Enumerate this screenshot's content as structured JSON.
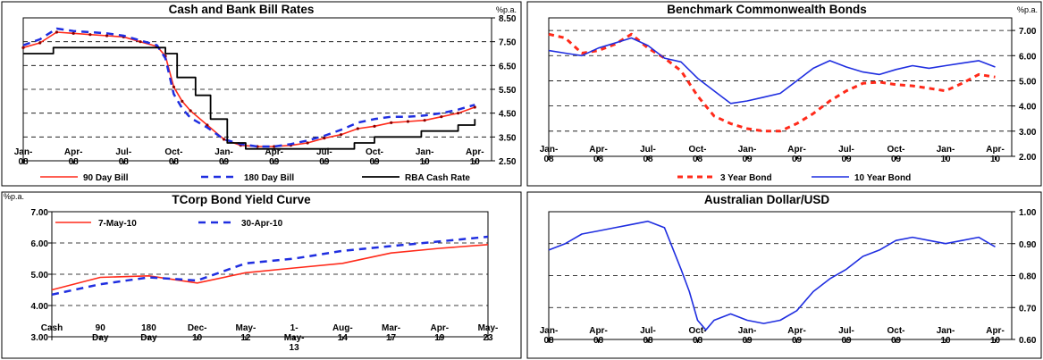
{
  "colors": {
    "red": "#ff2a1a",
    "blue": "#1f2ee0",
    "black": "#000000",
    "darkred": "#8b0000"
  },
  "chart_data": [
    {
      "id": "cash-bank",
      "type": "line",
      "title": "Cash and Bank Bill Rates",
      "unit": "%p.a.",
      "y_axis_side": "right",
      "ylim": [
        2.5,
        8.5
      ],
      "yticks": [
        "8.50",
        "7.50",
        "6.50",
        "5.50",
        "4.50",
        "3.50",
        "2.50"
      ],
      "xlim": [
        0,
        28
      ],
      "xtick_labels": [
        "Jan-\n08",
        "Apr-\n08",
        "Jul-\n08",
        "Oct-\n08",
        "Jan-\n09",
        "Apr-\n09",
        "Jul-\n09",
        "Oct-\n09",
        "Jan-\n10",
        "Apr-\n10"
      ],
      "grid": "horizontal dashed",
      "legend": "bottom",
      "series": [
        {
          "name": "90 Day Bill",
          "color": "red",
          "style": "solid-marker",
          "x": [
            0,
            1,
            2,
            3,
            4,
            5,
            6,
            7,
            8,
            8.5,
            9,
            9.5,
            10,
            11,
            12,
            13,
            14,
            15,
            16,
            17,
            18,
            19,
            20,
            21,
            22,
            23,
            24,
            25,
            26,
            27
          ],
          "y": [
            7.25,
            7.45,
            7.9,
            7.85,
            7.8,
            7.75,
            7.7,
            7.5,
            7.3,
            6.9,
            5.6,
            5.0,
            4.6,
            4.0,
            3.4,
            3.15,
            3.1,
            3.1,
            3.15,
            3.25,
            3.45,
            3.6,
            3.85,
            3.95,
            4.1,
            4.15,
            4.2,
            4.35,
            4.5,
            4.75
          ]
        },
        {
          "name": "180 Day Bill",
          "color": "blue",
          "style": "dashed",
          "x": [
            0,
            1,
            2,
            3,
            4,
            5,
            6,
            7,
            8,
            8.5,
            9,
            9.5,
            10,
            11,
            12,
            13,
            14,
            15,
            16,
            17,
            18,
            19,
            20,
            21,
            22,
            23,
            24,
            25,
            26,
            27
          ],
          "y": [
            7.35,
            7.6,
            8.05,
            7.95,
            7.9,
            7.85,
            7.75,
            7.55,
            7.35,
            6.8,
            5.3,
            4.7,
            4.3,
            3.9,
            3.4,
            3.2,
            3.1,
            3.1,
            3.2,
            3.35,
            3.55,
            3.8,
            4.1,
            4.25,
            4.35,
            4.35,
            4.4,
            4.5,
            4.65,
            4.85
          ]
        },
        {
          "name": "RBA Cash Rate",
          "color": "black",
          "style": "step",
          "x": [
            0,
            1,
            1.8,
            2.5,
            8.5,
            9.2,
            10.3,
            11.2,
            12.2,
            13.3,
            18.8,
            19.8,
            21,
            23.8,
            26,
            27
          ],
          "y": [
            7.0,
            7.0,
            7.25,
            7.25,
            7.0,
            6.0,
            5.25,
            4.25,
            3.25,
            3.0,
            3.0,
            3.25,
            3.5,
            3.75,
            4.0,
            4.25
          ]
        }
      ]
    },
    {
      "id": "cth-bonds",
      "type": "line",
      "title": "Benchmark Commonwealth Bonds",
      "unit": "%p.a.",
      "y_axis_side": "right",
      "ylim": [
        2.0,
        7.5
      ],
      "yticks": [
        "7.00",
        "6.00",
        "5.00",
        "4.00",
        "3.00",
        "2.00"
      ],
      "xlim": [
        0,
        28
      ],
      "xtick_labels": [
        "Jan-\n08",
        "Apr-\n08",
        "Jul-\n08",
        "Oct-\n08",
        "Jan-\n09",
        "Apr-\n09",
        "Jul-\n09",
        "Oct-\n09",
        "Jan-\n10",
        "Apr-\n10"
      ],
      "grid": "horizontal dashed",
      "legend": "bottom",
      "series": [
        {
          "name": "3 Year Bond",
          "color": "red",
          "style": "dashed-thick",
          "x": [
            0,
            1,
            2,
            3,
            4,
            5,
            6,
            7,
            8,
            9,
            10,
            11,
            12,
            13,
            14,
            15,
            16,
            17,
            18,
            19,
            20,
            21,
            22,
            23,
            24,
            25,
            26,
            27
          ],
          "y": [
            6.85,
            6.7,
            6.1,
            6.2,
            6.45,
            6.85,
            6.3,
            5.9,
            5.4,
            4.4,
            3.6,
            3.3,
            3.1,
            3.0,
            3.0,
            3.3,
            3.7,
            4.2,
            4.6,
            4.9,
            4.95,
            4.85,
            4.8,
            4.7,
            4.6,
            4.9,
            5.25,
            5.15
          ]
        },
        {
          "name": "10 Year Bond",
          "color": "blue",
          "style": "solid",
          "x": [
            0,
            1,
            2,
            3,
            4,
            5,
            6,
            7,
            8,
            9,
            10,
            11,
            12,
            13,
            14,
            15,
            16,
            17,
            18,
            19,
            20,
            21,
            22,
            23,
            24,
            25,
            26,
            27
          ],
          "y": [
            6.2,
            6.1,
            6.0,
            6.3,
            6.5,
            6.7,
            6.4,
            5.9,
            5.75,
            5.1,
            4.6,
            4.1,
            4.2,
            4.35,
            4.5,
            5.0,
            5.5,
            5.8,
            5.55,
            5.35,
            5.25,
            5.45,
            5.6,
            5.5,
            5.6,
            5.7,
            5.8,
            5.55
          ]
        }
      ]
    },
    {
      "id": "tcorp-curve",
      "type": "line",
      "title": "TCorp Bond Yield Curve",
      "unit": "%p.a.",
      "y_axis_side": "left",
      "ylim": [
        3.0,
        7.0
      ],
      "yticks": [
        "7.00",
        "6.00",
        "5.00",
        "4.00",
        "3.00"
      ],
      "categories": [
        "Cash",
        "90\nDay",
        "180\nDay",
        "Dec-\n10",
        "May-\n12",
        "1-\nMay-\n13",
        "Aug-\n14",
        "Mar-\n17",
        "Apr-\n19",
        "May-\n23"
      ],
      "grid": "horizontal dashed",
      "legend": "top-left",
      "series": [
        {
          "name": "7-May-10",
          "color": "red",
          "style": "solid",
          "values": [
            4.5,
            4.9,
            4.95,
            4.72,
            5.05,
            5.2,
            5.35,
            5.68,
            5.83,
            5.95
          ]
        },
        {
          "name": "30-Apr-10",
          "color": "blue",
          "style": "dashed",
          "values": [
            4.35,
            4.68,
            4.9,
            4.8,
            5.35,
            5.5,
            5.75,
            5.9,
            6.05,
            6.2
          ]
        }
      ]
    },
    {
      "id": "aud-usd",
      "type": "line",
      "title": "Australian Dollar/USD",
      "y_axis_side": "right",
      "ylim": [
        0.6,
        1.0
      ],
      "yticks": [
        "1.00",
        "0.90",
        "0.80",
        "0.70",
        "0.60"
      ],
      "xlim": [
        0,
        28
      ],
      "xtick_labels": [
        "Jan-\n08",
        "Apr-\n08",
        "Jul-\n08",
        "Oct-\n08",
        "Jan-\n09",
        "Apr-\n09",
        "Jul-\n09",
        "Oct-\n09",
        "Jan-\n10",
        "Apr-\n10"
      ],
      "grid": "horizontal dashed",
      "series": [
        {
          "name": "",
          "color": "blue",
          "style": "solid",
          "x": [
            0,
            1,
            2,
            3,
            4,
            5,
            6,
            7,
            8,
            8.5,
            9,
            9.5,
            10,
            11,
            12,
            13,
            14,
            15,
            16,
            17,
            18,
            19,
            20,
            21,
            22,
            23,
            24,
            25,
            26,
            27
          ],
          "y": [
            0.88,
            0.9,
            0.93,
            0.94,
            0.95,
            0.96,
            0.97,
            0.95,
            0.82,
            0.75,
            0.66,
            0.63,
            0.66,
            0.68,
            0.66,
            0.65,
            0.66,
            0.69,
            0.75,
            0.79,
            0.82,
            0.86,
            0.88,
            0.91,
            0.92,
            0.91,
            0.9,
            0.91,
            0.92,
            0.89
          ]
        }
      ]
    }
  ]
}
